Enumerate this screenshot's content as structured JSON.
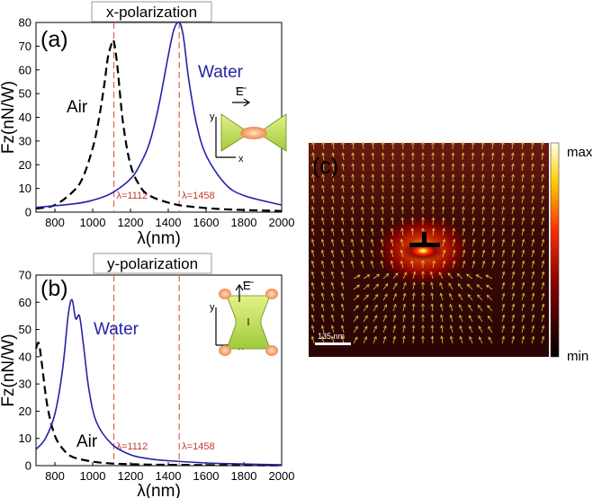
{
  "colors": {
    "water": "#2323a8",
    "air": "#000000",
    "marker": "#e06050"
  },
  "chart_data": [
    {
      "panel": "(a)",
      "type": "line",
      "title": "x-polarization",
      "xlabel": "λ(nm)",
      "ylabel": "Fz(nN/W)",
      "xlim": [
        700,
        2000
      ],
      "ylim": [
        0,
        80
      ],
      "xticks": [
        800,
        1000,
        1200,
        1400,
        1600,
        1800,
        2000
      ],
      "yticks": [
        0,
        10,
        20,
        30,
        40,
        50,
        60,
        70,
        80
      ],
      "series": [
        {
          "name": "Air",
          "style": "dashed",
          "color": "#000000",
          "x": [
            700,
            800,
            900,
            950,
            1000,
            1030,
            1060,
            1080,
            1100,
            1112,
            1130,
            1160,
            1200,
            1250,
            1300,
            1400,
            1500,
            1700,
            2000
          ],
          "y": [
            1.5,
            3,
            9,
            15,
            27,
            38,
            53,
            65,
            71,
            72,
            62,
            38,
            20,
            11,
            7,
            4,
            2.5,
            1.2,
            0.5
          ]
        },
        {
          "name": "Water",
          "style": "solid",
          "color": "#2323a8",
          "x": [
            700,
            900,
            1000,
            1100,
            1200,
            1250,
            1300,
            1350,
            1400,
            1430,
            1458,
            1480,
            1510,
            1550,
            1600,
            1700,
            1800,
            2000
          ],
          "y": [
            2,
            3.5,
            5,
            8,
            14,
            20,
            29,
            45,
            66,
            77,
            80,
            74,
            55,
            37,
            24,
            12,
            7,
            3
          ]
        }
      ],
      "markers": [
        {
          "x": 1112,
          "label": "λ=1112"
        },
        {
          "x": 1458,
          "label": "λ=1458"
        }
      ],
      "annotations": {
        "air_label": "Air",
        "water_label": "Water",
        "field_label": "E"
      }
    },
    {
      "panel": "(b)",
      "type": "line",
      "title": "y-polarization",
      "xlabel": "λ(nm)",
      "ylabel": "Fz(nN/W)",
      "xlim": [
        700,
        2000
      ],
      "ylim": [
        0,
        70
      ],
      "xticks": [
        800,
        1000,
        1200,
        1400,
        1600,
        1800,
        2000
      ],
      "yticks": [
        0,
        10,
        20,
        30,
        40,
        50,
        60,
        70
      ],
      "series": [
        {
          "name": "Air",
          "style": "dashed",
          "color": "#000000",
          "x": [
            700,
            715,
            730,
            760,
            800,
            850,
            900,
            1000,
            1100,
            1300,
            1600,
            2000
          ],
          "y": [
            43,
            45,
            38,
            22,
            11,
            5.5,
            3,
            1.5,
            0.8,
            0.4,
            0.2,
            0.1
          ]
        },
        {
          "name": "Water",
          "style": "solid",
          "color": "#2323a8",
          "x": [
            700,
            750,
            800,
            840,
            870,
            890,
            910,
            930,
            950,
            980,
            1020,
            1100,
            1200,
            1300,
            1400,
            1600,
            1800,
            2000
          ],
          "y": [
            6,
            10,
            19,
            35,
            55,
            61,
            54,
            55,
            45,
            28,
            16,
            8,
            4,
            2.5,
            1.8,
            1,
            0.6,
            0.3
          ]
        }
      ],
      "markers": [
        {
          "x": 1112,
          "label": "λ=1112"
        },
        {
          "x": 1458,
          "label": "λ=1458"
        }
      ],
      "annotations": {
        "air_label": "Air",
        "water_label": "Water",
        "field_label": "E"
      }
    },
    {
      "panel": "(c)",
      "type": "heatmap",
      "title": "",
      "colorbar": {
        "max_label": "max",
        "min_label": "min"
      },
      "scalebar_label": "135 nm"
    }
  ]
}
